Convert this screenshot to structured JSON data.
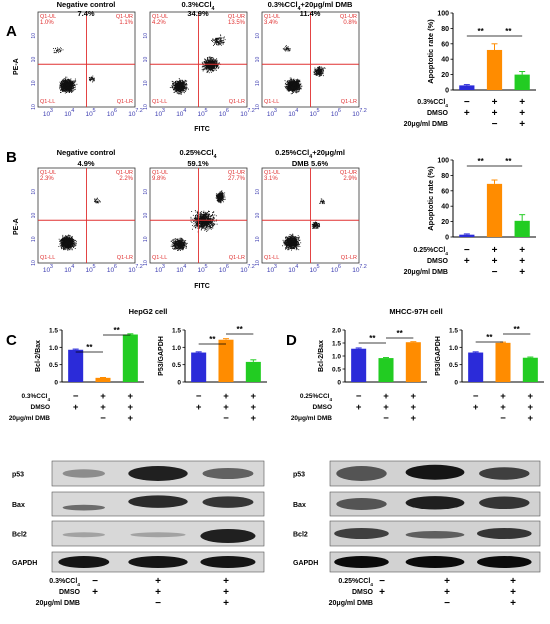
{
  "panels": {
    "A": "A",
    "B": "B",
    "C": "C",
    "D": "D"
  },
  "flow": {
    "ylabel": "PE-A",
    "xlabel": "FITC",
    "xticks": [
      "10",
      "10",
      "10",
      "10",
      "10"
    ],
    "xexp": [
      "3",
      "4",
      "5",
      "6",
      "7.2"
    ],
    "quad": [
      "Q1-UL",
      "Q1-UR",
      "Q1-LL",
      "Q1-LR"
    ],
    "A": [
      {
        "title": "Negative control",
        "pct": "7.4%",
        "ul": "1.0%",
        "ur": "1.1%"
      },
      {
        "title": "0.3%CCl",
        "sub": "4",
        "pct": "34.9%",
        "ul": "4.2%",
        "ur": "13.5%"
      },
      {
        "title": "0.3%CCl",
        "sub": "4",
        "tail": "+20μg/ml  DMB",
        "pct": "11.4%",
        "ul": "3.4%",
        "ur": "0.8%"
      }
    ],
    "B": [
      {
        "title": "Negative control",
        "pct": "4.9%",
        "ul": "2.3%",
        "ur": "2.2%"
      },
      {
        "title": "0.25%CCl",
        "sub": "4",
        "pct": "59.1%",
        "ul": "9.8%",
        "ur": "27.7%"
      },
      {
        "title": "0.25%CCl",
        "sub": "4",
        "tail": "+20μg/ml",
        "line2": "DMB    5.6%",
        "ul": "3.1%",
        "ur": "2.9%"
      }
    ]
  },
  "bar_labels": {
    "apoptotic": "Apoptotic rate  (%)",
    "ccl_a": "0.3%CCl",
    "ccl_b": "0.25%CCl",
    "sub4": "4",
    "dmso": "DMSO",
    "dmb": "20μg/ml DMB",
    "plus": "+",
    "minus": "−",
    "sig": "**"
  },
  "chart_data": [
    {
      "type": "bar",
      "panel": "A",
      "categories": [
        "DMSO",
        "0.3%CCl4",
        "0.3%CCl4+DMB"
      ],
      "values": [
        6,
        52,
        20
      ],
      "errors": [
        1,
        8,
        4
      ],
      "ylabel": "Apoptotic rate (%)",
      "ylim": [
        0,
        100
      ],
      "yticks": [
        0,
        20,
        40,
        60,
        80,
        100
      ],
      "colors": [
        "#2b2bd9",
        "#ff8c00",
        "#22cc22"
      ]
    },
    {
      "type": "bar",
      "panel": "B",
      "categories": [
        "DMSO",
        "0.25%CCl4",
        "0.25%CCl4+DMB"
      ],
      "values": [
        3,
        69,
        21
      ],
      "errors": [
        1,
        5,
        8
      ],
      "ylabel": "Apoptotic rate (%)",
      "ylim": [
        0,
        100
      ],
      "yticks": [
        0,
        20,
        40,
        60,
        80,
        100
      ],
      "colors": [
        "#2b2bd9",
        "#ff8c00",
        "#22cc22"
      ]
    },
    {
      "type": "bar",
      "panel": "C",
      "title": "HepG2 cell",
      "ylabel": "Bcl-2/Bax",
      "values": [
        0.93,
        0.12,
        1.37
      ],
      "errors": [
        0.02,
        0.01,
        0.02
      ],
      "ylim": [
        0,
        1.5
      ],
      "yticks": [
        "0",
        "0.5",
        "1.0",
        "1.5"
      ],
      "colors": [
        "#2b2bd9",
        "#ff8c00",
        "#22cc22"
      ]
    },
    {
      "type": "bar",
      "panel": "C",
      "title": "HepG2 cell",
      "ylabel": "P53/GAPDH",
      "values": [
        0.85,
        1.22,
        0.58
      ],
      "errors": [
        0.02,
        0.03,
        0.06
      ],
      "ylim": [
        0,
        1.5
      ],
      "yticks": [
        "0",
        "0.5",
        "1.0",
        "1.5"
      ],
      "colors": [
        "#2b2bd9",
        "#ff8c00",
        "#22cc22"
      ]
    },
    {
      "type": "bar",
      "panel": "D",
      "title": "MHCC-97H cell",
      "ylabel": "Bcl-2/Bax",
      "values": [
        1.28,
        0.92,
        1.53
      ],
      "errors": [
        0.03,
        0.02,
        0.02
      ],
      "ylim": [
        0,
        2.0
      ],
      "yticks": [
        "0",
        "0.5",
        "1.0",
        "1.5",
        "2.0"
      ],
      "colors": [
        "#2b2bd9",
        "#22cc22",
        "#ff8c00"
      ]
    },
    {
      "type": "bar",
      "panel": "D",
      "title": "MHCC-97H cell",
      "ylabel": "P53/GAPDH",
      "values": [
        0.85,
        1.13,
        0.7
      ],
      "errors": [
        0.02,
        0.02,
        0.02
      ],
      "ylim": [
        0,
        1.5
      ],
      "yticks": [
        "0",
        "0.5",
        "1.0",
        "1.5"
      ],
      "colors": [
        "#2b2bd9",
        "#ff8c00",
        "#22cc22"
      ]
    }
  ],
  "blots": {
    "C": {
      "title": "HepG2 cell",
      "rows": [
        "p53",
        "Bax",
        "Bcl2",
        "GAPDH"
      ]
    },
    "D": {
      "title": "MHCC-97H cell",
      "rows": [
        "p53",
        "Bax",
        "Bcl2",
        "GAPDH"
      ]
    }
  },
  "colors": {
    "blue": "#2b2bd9",
    "orange": "#ff8c00",
    "green": "#22cc22",
    "quad": "#e03030",
    "axis": "#3a3ab0"
  }
}
